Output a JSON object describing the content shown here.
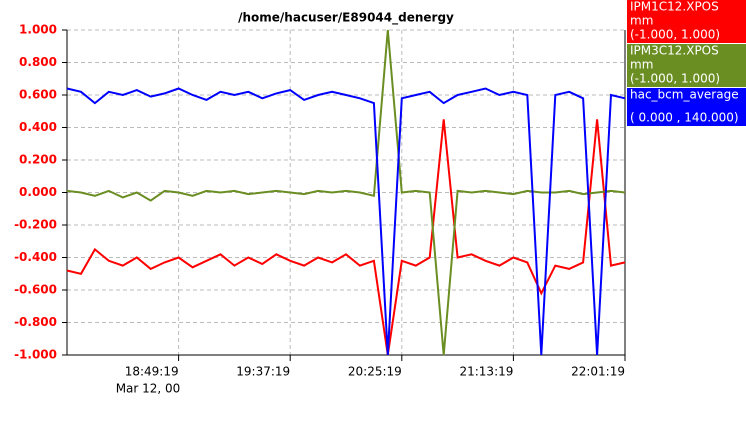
{
  "chart_data": {
    "type": "line",
    "title": "/home/hacuser/E89044_denergy",
    "date_label": "Mar 12, 00",
    "x": [
      "18:01:19",
      "18:07:19",
      "18:13:19",
      "18:19:19",
      "18:25:19",
      "18:31:19",
      "18:37:19",
      "18:43:19",
      "18:49:19",
      "18:55:19",
      "19:01:19",
      "19:07:19",
      "19:13:19",
      "19:19:19",
      "19:25:19",
      "19:31:19",
      "19:37:19",
      "19:43:19",
      "19:49:19",
      "19:55:19",
      "20:01:19",
      "20:07:19",
      "20:13:19",
      "20:19:19",
      "20:25:19",
      "20:31:19",
      "20:37:19",
      "20:43:19",
      "20:49:19",
      "20:55:19",
      "21:01:19",
      "21:07:19",
      "21:13:19",
      "21:19:19",
      "21:25:19",
      "21:31:19",
      "21:37:19",
      "21:43:19",
      "21:49:19",
      "21:55:19",
      "22:01:19"
    ],
    "xlim": [
      "18:01:19",
      "22:01:19"
    ],
    "xticks": [
      "18:49:19",
      "19:37:19",
      "20:25:19",
      "21:13:19",
      "22:01:19"
    ],
    "ylim": [
      -1,
      1
    ],
    "yticks": [
      {
        "value": -1,
        "label": "-1.000"
      },
      {
        "value": -0.8,
        "label": "-0.800"
      },
      {
        "value": -0.6,
        "label": "-0.600"
      },
      {
        "value": -0.4,
        "label": "-0.400"
      },
      {
        "value": -0.2,
        "label": "-0.200"
      },
      {
        "value": 0,
        "label": "0.000"
      },
      {
        "value": 0.2,
        "label": "0.200"
      },
      {
        "value": 0.4,
        "label": "0.400"
      },
      {
        "value": 0.6,
        "label": "0.600"
      },
      {
        "value": 0.8,
        "label": "0.800"
      },
      {
        "value": 1,
        "label": "1.000"
      }
    ],
    "grid": true,
    "legend": "right",
    "series": [
      {
        "name": "IPM1C12.XPOS",
        "units": "mm",
        "range": "(-1.000, 1.000)",
        "color": "#ff0000",
        "values": [
          -0.48,
          -0.5,
          -0.35,
          -0.42,
          -0.45,
          -0.4,
          -0.47,
          -0.43,
          -0.4,
          -0.46,
          -0.42,
          -0.38,
          -0.45,
          -0.4,
          -0.44,
          -0.38,
          -0.42,
          -0.45,
          -0.4,
          -0.43,
          -0.38,
          -0.45,
          -0.42,
          -1.0,
          -0.42,
          -0.45,
          -0.4,
          0.45,
          -0.4,
          -0.38,
          -0.42,
          -0.45,
          -0.4,
          -0.43,
          -0.62,
          -0.45,
          -0.47,
          -0.43,
          0.45,
          -0.45,
          -0.43
        ]
      },
      {
        "name": "IPM3C12.XPOS",
        "units": "mm",
        "range": "(-1.000, 1.000)",
        "color": "#6b8e23",
        "values": [
          0.01,
          0.0,
          -0.02,
          0.01,
          -0.03,
          0.0,
          -0.05,
          0.01,
          0.0,
          -0.02,
          0.01,
          0.0,
          0.01,
          -0.01,
          0.0,
          0.01,
          0.0,
          -0.01,
          0.01,
          0.0,
          0.01,
          0.0,
          -0.02,
          1.0,
          0.0,
          0.01,
          0.0,
          -1.0,
          0.01,
          0.0,
          0.01,
          0.0,
          -0.01,
          0.01,
          0.0,
          0.0,
          0.01,
          -0.01,
          0.0,
          0.01,
          0.0
        ]
      },
      {
        "name": "hac_bcm_average",
        "range": "( 0.000 , 140.000)",
        "color": "#0000ff",
        "values": [
          0.64,
          0.62,
          0.55,
          0.62,
          0.6,
          0.63,
          0.59,
          0.61,
          0.64,
          0.6,
          0.57,
          0.62,
          0.6,
          0.62,
          0.58,
          0.61,
          0.63,
          0.57,
          0.6,
          0.62,
          0.6,
          0.58,
          0.55,
          -1.0,
          0.58,
          0.6,
          0.62,
          0.55,
          0.6,
          0.62,
          0.64,
          0.6,
          0.62,
          0.6,
          -1.0,
          0.6,
          0.62,
          0.58,
          -1.0,
          0.6,
          0.58
        ]
      }
    ]
  }
}
